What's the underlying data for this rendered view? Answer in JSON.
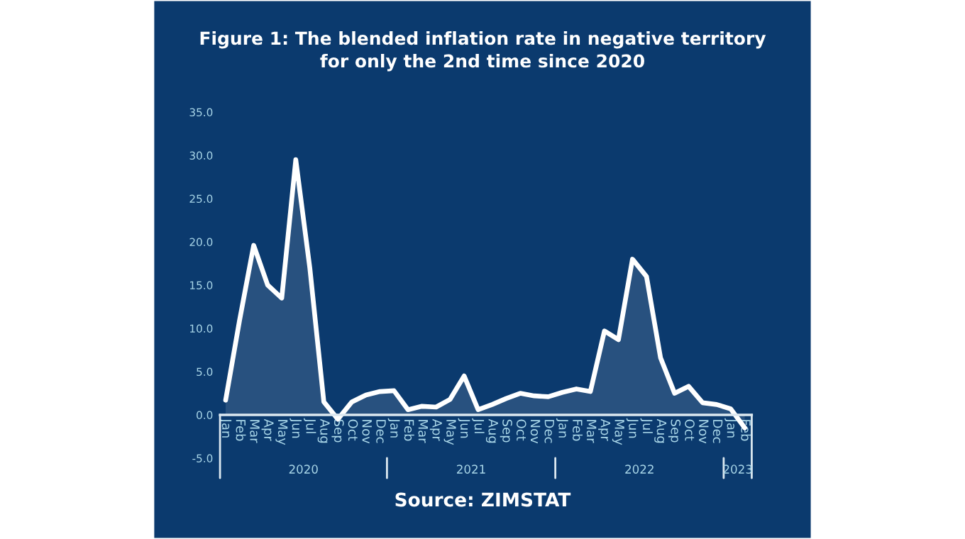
{
  "chart_data": {
    "type": "area",
    "title": "Figure 1: The blended inflation rate in negative territory\nfor only the 2nd time since 2020",
    "categories": [
      "Jan",
      "Feb",
      "Mar",
      "Apr",
      "May",
      "Jun",
      "Jul",
      "Aug",
      "Sep",
      "Oct",
      "Nov",
      "Dec",
      "Jan",
      "Feb",
      "Mar",
      "Apr",
      "May",
      "Jun",
      "Jul",
      "Aug",
      "Sep",
      "Oct",
      "Nov",
      "Dec",
      "Jan",
      "Feb",
      "Mar",
      "Apr",
      "May",
      "Jun",
      "Jul",
      "Aug",
      "Sep",
      "Oct",
      "Nov",
      "Dec",
      "Jan",
      "Feb"
    ],
    "series": [
      {
        "color": "#ffffff",
        "values": [
          1.7,
          11.0,
          19.6,
          15.0,
          13.5,
          29.5,
          17.0,
          1.5,
          -0.5,
          1.5,
          2.3,
          2.7,
          2.8,
          0.6,
          1.0,
          0.9,
          1.8,
          4.5,
          0.6,
          1.2,
          1.9,
          2.5,
          2.2,
          2.1,
          2.6,
          3.0,
          2.7,
          9.7,
          8.7,
          18.0,
          16.0,
          6.6,
          2.5,
          3.3,
          1.4,
          1.2,
          0.7,
          -1.5
        ]
      }
    ],
    "ylim": [
      -5,
      35
    ],
    "yticks": [
      {
        "value": -5,
        "label": "-5.0"
      },
      {
        "value": 0,
        "label": "0.0"
      },
      {
        "value": 5,
        "label": "5.0"
      },
      {
        "value": 10,
        "label": "10.0"
      },
      {
        "value": 15,
        "label": "15.0"
      },
      {
        "value": 20,
        "label": "20.0"
      },
      {
        "value": 25,
        "label": "25.0"
      },
      {
        "value": 30,
        "label": "30.0"
      },
      {
        "value": 35,
        "label": "35.0"
      }
    ],
    "grid": false,
    "legend": false,
    "annotations": [
      "2020",
      "2021",
      "2022",
      "2023",
      "Source: ZIMSTAT"
    ]
  }
}
